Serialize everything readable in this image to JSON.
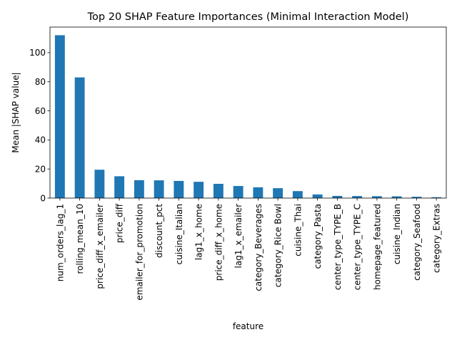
{
  "chart_data": {
    "type": "bar",
    "title": "Top 20 SHAP Feature Importances (Minimal Interaction Model)",
    "xlabel": "feature",
    "ylabel": "Mean |SHAP value|",
    "ylim": [
      0,
      117.6
    ],
    "yticks": [
      0,
      20,
      40,
      60,
      80,
      100
    ],
    "grid": false,
    "bar_color": "#1f77b4",
    "categories": [
      "num_orders_lag_1",
      "rolling_mean_10",
      "price_diff_x_emailer",
      "price_diff",
      "emailer_for_promotion",
      "discount_pct",
      "cuisine_Italian",
      "lag1_x_home",
      "price_diff_x_home",
      "lag1_x_emailer",
      "category_Beverages",
      "category_Rice Bowl",
      "cuisine_Thai",
      "category_Pasta",
      "center_type_TYPE_B",
      "center_type_TYPE_C",
      "homepage_featured",
      "cuisine_Indian",
      "category_Seafood",
      "category_Extras"
    ],
    "values": [
      112,
      83,
      19.5,
      15,
      12.3,
      12.2,
      11.8,
      11.2,
      9.8,
      8.3,
      7.4,
      6.8,
      4.8,
      2.5,
      1.5,
      1.4,
      1.3,
      1.2,
      0.9,
      0.6
    ]
  }
}
